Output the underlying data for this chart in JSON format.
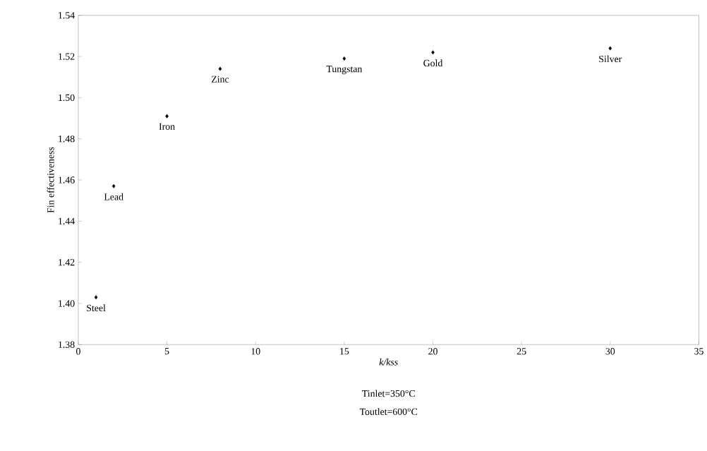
{
  "chart_data": {
    "type": "scatter",
    "xlabel": "k/kss",
    "ylabel": "Fin effectiveness",
    "x": [
      1,
      2,
      5,
      8,
      15,
      20,
      30
    ],
    "values": [
      1.403,
      1.457,
      1.491,
      1.514,
      1.519,
      1.522,
      1.524
    ],
    "color": "#000000",
    "marker": "diamond",
    "xlim": [
      0,
      35
    ],
    "xticks": [
      0,
      5,
      10,
      15,
      20,
      25,
      30,
      35
    ],
    "ylim": [
      1.38,
      1.54
    ],
    "yticks": [
      1.38,
      {
        "value": 1.4,
        "label": "1.40"
      },
      1.42,
      1.44,
      1.46,
      1.48,
      {
        "value": 1.5,
        "label": "1.50"
      },
      1.52,
      1.54
    ],
    "annotations": [
      {
        "text": "Steel",
        "x": 1,
        "y": 1.403
      },
      {
        "text": "Lead",
        "x": 2,
        "y": 1.457
      },
      {
        "text": "Iron",
        "x": 5,
        "y": 1.491
      },
      {
        "text": "Zinc",
        "x": 8,
        "y": 1.514
      },
      {
        "text": "Tungstan",
        "x": 15,
        "y": 1.519
      },
      {
        "text": "Gold",
        "x": 20,
        "y": 1.522
      },
      {
        "text": "Silver",
        "x": 30,
        "y": 1.524
      },
      "Tinlet=350°C",
      "Toutlet=600°C"
    ]
  }
}
